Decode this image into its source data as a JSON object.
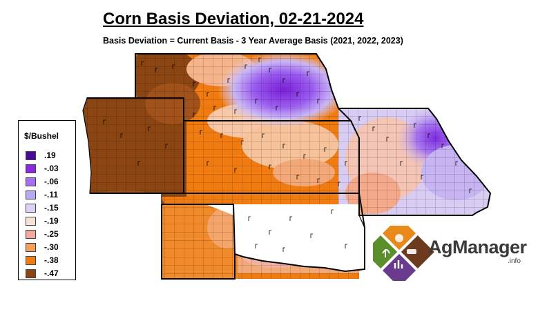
{
  "title": "Corn Basis Deviation, 02-21-2024",
  "subtitle": "Basis Deviation = Current Basis - 3 Year Average Basis (2021, 2022, 2023)",
  "legend": {
    "title": "$/Bushel",
    "items": [
      {
        "label": ".19",
        "color": "#4b0a99"
      },
      {
        "label": "-.03",
        "color": "#8a2be2"
      },
      {
        "label": "-.06",
        "color": "#a66ff0"
      },
      {
        "label": "-.11",
        "color": "#b9a8f2"
      },
      {
        "label": "-.15",
        "color": "#ddd0f7"
      },
      {
        "label": "-.19",
        "color": "#f6e3d6"
      },
      {
        "label": "-.25",
        "color": "#f4a79a"
      },
      {
        "label": "-.30",
        "color": "#f5a05a"
      },
      {
        "label": "-.38",
        "color": "#f07b10"
      },
      {
        "label": "-.47",
        "color": "#8b4513"
      }
    ]
  },
  "logo": {
    "name": "AgManager",
    "suffix": ".info",
    "colors": {
      "orange": "#e8891a",
      "green": "#5a8f2c",
      "brown": "#6b3a1f",
      "purple": "#6a3a8f"
    }
  }
}
